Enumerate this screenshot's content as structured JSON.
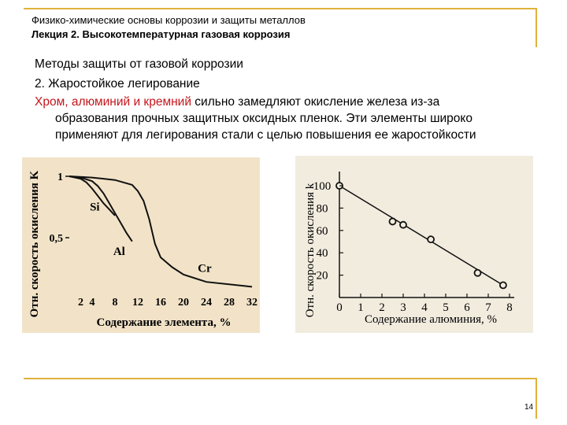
{
  "header": {
    "subtitle": "Физико-химические основы коррозии и защиты металлов",
    "title": "Лекция 2. Высокотемпературная газовая коррозия"
  },
  "body": {
    "line1": "Методы защиты от газовой коррозии",
    "line2": "2. Жаростойкое легирование",
    "line3_red": "Хром, алюминий и кремний",
    "line3_rest": " сильно замедляют окисление железа из-за",
    "line4": "образования прочных защитных оксидных пленок. Эти элементы широко",
    "line5": "применяют для легирования стали с целью повышения ее жаростойкости"
  },
  "page_number": "14",
  "chart_data": [
    {
      "type": "line",
      "xlabel": "Содержание элемента, %",
      "ylabel": "Отн. скорость окисления K",
      "x_ticks": [
        "2",
        "4",
        "8",
        "12",
        "16",
        "20",
        "24",
        "28",
        "32"
      ],
      "y_ticks": [
        "1",
        "0,5"
      ],
      "xlim": [
        0,
        32
      ],
      "ylim": [
        0,
        1
      ],
      "series": [
        {
          "name": "Si",
          "x": [
            0,
            2,
            3,
            4,
            5,
            6,
            7,
            8
          ],
          "y": [
            1,
            0.98,
            0.95,
            0.9,
            0.84,
            0.78,
            0.73,
            0.68
          ]
        },
        {
          "name": "Al",
          "x": [
            0,
            2,
            4,
            5,
            6,
            7,
            8,
            9,
            10,
            11
          ],
          "y": [
            1,
            0.99,
            0.96,
            0.92,
            0.86,
            0.78,
            0.7,
            0.62,
            0.54,
            0.47
          ]
        },
        {
          "name": "Cr",
          "x": [
            0,
            4,
            8,
            11,
            12,
            13,
            14,
            15,
            16,
            18,
            20,
            24,
            28,
            32
          ],
          "y": [
            1,
            0.99,
            0.97,
            0.93,
            0.88,
            0.8,
            0.65,
            0.45,
            0.34,
            0.26,
            0.2,
            0.14,
            0.12,
            0.1
          ]
        }
      ]
    },
    {
      "type": "scatter",
      "xlabel": "Содержание алюминия, %",
      "ylabel": "Отн. скорость окисления k",
      "x_ticks": [
        "0",
        "1",
        "2",
        "3",
        "4",
        "5",
        "6",
        "7",
        "8"
      ],
      "y_ticks": [
        "20",
        "40",
        "60",
        "80",
        "100"
      ],
      "xlim": [
        0,
        8
      ],
      "ylim": [
        0,
        100
      ],
      "points": [
        {
          "x": 0,
          "y": 100
        },
        {
          "x": 2.5,
          "y": 68
        },
        {
          "x": 3,
          "y": 65
        },
        {
          "x": 4.3,
          "y": 52
        },
        {
          "x": 6.5,
          "y": 22
        },
        {
          "x": 7.7,
          "y": 11
        }
      ],
      "trend": {
        "x": [
          0,
          7.7
        ],
        "y": [
          100,
          11
        ]
      }
    }
  ]
}
